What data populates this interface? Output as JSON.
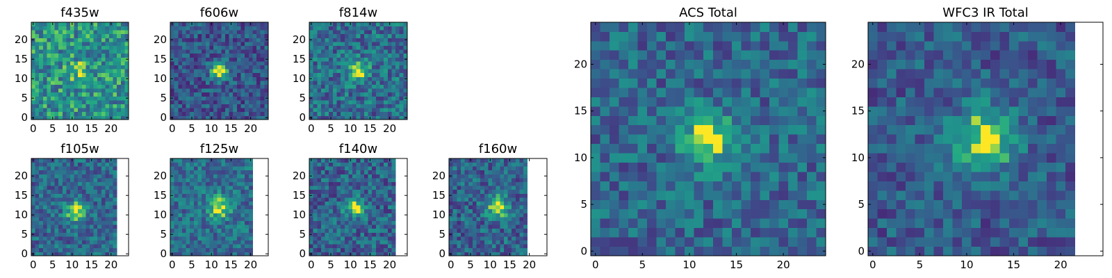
{
  "chart_data": [
    {
      "type": "heatmap",
      "title": "f435w",
      "xticks": [
        "0",
        "5",
        "10",
        "15",
        "20"
      ],
      "yticks": [
        "0",
        "5",
        "10",
        "15",
        "20"
      ],
      "xlim": [
        0,
        25
      ],
      "ylim": [
        0,
        25
      ],
      "grid_size": 25,
      "source_width": 25,
      "colormap": "viridis",
      "noise_level": 0.62,
      "noise_amplitude": 0.28,
      "peak": {
        "x": 12,
        "y": 12,
        "amplitude": 0.2,
        "sigma": 1.8
      },
      "seed": 11
    },
    {
      "type": "heatmap",
      "title": "f606w",
      "xticks": [
        "0",
        "5",
        "10",
        "15",
        "20"
      ],
      "yticks": [
        "0",
        "5",
        "10",
        "15",
        "20"
      ],
      "xlim": [
        0,
        25
      ],
      "ylim": [
        0,
        25
      ],
      "grid_size": 25,
      "source_width": 25,
      "colormap": "viridis",
      "noise_level": 0.34,
      "noise_amplitude": 0.22,
      "peak": {
        "x": 12,
        "y": 12,
        "amplitude": 0.75,
        "sigma": 1.6
      },
      "seed": 23
    },
    {
      "type": "heatmap",
      "title": "f814w",
      "xticks": [
        "0",
        "5",
        "10",
        "15",
        "20"
      ],
      "yticks": [
        "0",
        "5",
        "10",
        "15",
        "20"
      ],
      "xlim": [
        0,
        25
      ],
      "ylim": [
        0,
        25
      ],
      "grid_size": 25,
      "source_width": 25,
      "colormap": "viridis",
      "noise_level": 0.45,
      "noise_amplitude": 0.26,
      "peak": {
        "x": 12,
        "y": 12,
        "amplitude": 0.55,
        "sigma": 1.8
      },
      "seed": 37
    },
    {
      "type": "heatmap",
      "title": "f105w",
      "xticks": [
        "0",
        "5",
        "10",
        "15",
        "20"
      ],
      "yticks": [
        "0",
        "5",
        "10",
        "15",
        "20"
      ],
      "xlim": [
        0,
        25
      ],
      "ylim": [
        0,
        25
      ],
      "grid_size": 25,
      "source_width": 22,
      "colormap": "viridis",
      "noise_level": 0.42,
      "noise_amplitude": 0.22,
      "peak": {
        "x": 11,
        "y": 11,
        "amplitude": 0.6,
        "sigma": 1.8
      },
      "seed": 41
    },
    {
      "type": "heatmap",
      "title": "f125w",
      "xticks": [
        "0",
        "5",
        "10",
        "15",
        "20"
      ],
      "yticks": [
        "0",
        "5",
        "10",
        "15",
        "20"
      ],
      "xlim": [
        0,
        25
      ],
      "ylim": [
        0,
        25
      ],
      "grid_size": 25,
      "source_width": 21,
      "colormap": "viridis",
      "noise_level": 0.45,
      "noise_amplitude": 0.22,
      "peak": {
        "x": 12,
        "y": 12,
        "amplitude": 0.55,
        "sigma": 2.0
      },
      "seed": 53
    },
    {
      "type": "heatmap",
      "title": "f140w",
      "xticks": [
        "0",
        "5",
        "10",
        "15",
        "20"
      ],
      "yticks": [
        "0",
        "5",
        "10",
        "15",
        "20"
      ],
      "xlim": [
        0,
        25
      ],
      "ylim": [
        0,
        25
      ],
      "grid_size": 25,
      "source_width": 22,
      "colormap": "viridis",
      "noise_level": 0.4,
      "noise_amplitude": 0.24,
      "peak": {
        "x": 11,
        "y": 12,
        "amplitude": 0.6,
        "sigma": 1.7
      },
      "seed": 67
    },
    {
      "type": "heatmap",
      "title": "f160w",
      "xticks": [
        "0",
        "5",
        "10",
        "15",
        "20"
      ],
      "yticks": [
        "0",
        "5",
        "10",
        "15",
        "20"
      ],
      "xlim": [
        0,
        25
      ],
      "ylim": [
        0,
        25
      ],
      "grid_size": 25,
      "source_width": 20,
      "colormap": "viridis",
      "noise_level": 0.4,
      "noise_amplitude": 0.24,
      "peak": {
        "x": 12,
        "y": 12,
        "amplitude": 0.6,
        "sigma": 2.0
      },
      "seed": 79
    },
    {
      "type": "heatmap",
      "title": "ACS Total",
      "xticks": [
        "0",
        "5",
        "10",
        "15",
        "20"
      ],
      "yticks": [
        "0",
        "5",
        "10",
        "15",
        "20"
      ],
      "xlim": [
        0,
        25
      ],
      "ylim": [
        0,
        25
      ],
      "grid_size": 25,
      "source_width": 25,
      "colormap": "viridis",
      "noise_level": 0.42,
      "noise_amplitude": 0.22,
      "peak": {
        "x": 12,
        "y": 12,
        "amplitude": 0.6,
        "sigma": 1.9
      },
      "seed": 97
    },
    {
      "type": "heatmap",
      "title": "WFC3 IR Total",
      "xticks": [
        "0",
        "5",
        "10",
        "15",
        "20"
      ],
      "yticks": [
        "0",
        "5",
        "10",
        "15",
        "20"
      ],
      "xlim": [
        0,
        25
      ],
      "ylim": [
        0,
        25
      ],
      "grid_size": 25,
      "source_width": 22,
      "colormap": "viridis",
      "noise_level": 0.36,
      "noise_amplitude": 0.2,
      "peak": {
        "x": 12,
        "y": 12,
        "amplitude": 0.65,
        "sigma": 2.3
      },
      "seed": 101
    }
  ]
}
